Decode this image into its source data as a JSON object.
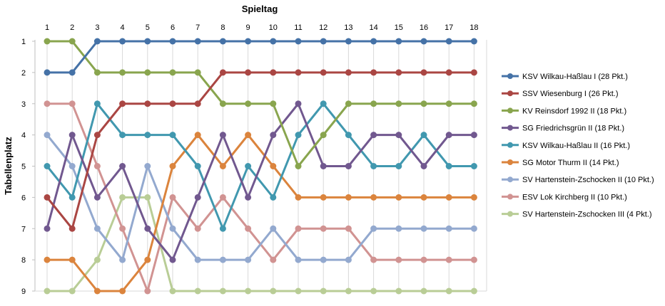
{
  "chart_data": {
    "type": "line",
    "xlabel": "Spieltag",
    "ylabel": "Tabellenplatz",
    "x": [
      1,
      2,
      3,
      4,
      5,
      6,
      7,
      8,
      9,
      10,
      11,
      12,
      13,
      14,
      15,
      16,
      17,
      18
    ],
    "ylim": [
      1,
      9
    ],
    "y_inverted": true,
    "grid": "vertical",
    "legend_position": "right",
    "series": [
      {
        "name": "KSV Wilkau-Haßlau I (28 Pkt.)",
        "color": "#4572A7",
        "values": [
          2,
          2,
          1,
          1,
          1,
          1,
          1,
          1,
          1,
          1,
          1,
          1,
          1,
          1,
          1,
          1,
          1,
          1
        ]
      },
      {
        "name": "SSV Wiesenburg I (26 Pkt.)",
        "color": "#AA4643",
        "values": [
          6,
          7,
          4,
          3,
          3,
          3,
          3,
          2,
          2,
          2,
          2,
          2,
          2,
          2,
          2,
          2,
          2,
          2
        ]
      },
      {
        "name": "KV Reinsdorf 1992 II (18 Pkt.)",
        "color": "#89A54E",
        "values": [
          1,
          1,
          2,
          2,
          2,
          2,
          2,
          3,
          3,
          3,
          5,
          4,
          3,
          3,
          3,
          3,
          3,
          3
        ]
      },
      {
        "name": "SG Friedrichsgrün II (18 Pkt.)",
        "color": "#71588F",
        "values": [
          7,
          4,
          6,
          5,
          7,
          8,
          6,
          4,
          6,
          4,
          3,
          5,
          5,
          4,
          4,
          5,
          4,
          4
        ]
      },
      {
        "name": "KSV Wilkau-Haßlau II (16 Pkt.)",
        "color": "#4198AF",
        "values": [
          5,
          6,
          3,
          4,
          4,
          4,
          5,
          7,
          5,
          6,
          4,
          3,
          4,
          5,
          5,
          4,
          5,
          5
        ]
      },
      {
        "name": "SG Motor Thurm II (14 Pkt.)",
        "color": "#DB843D",
        "values": [
          8,
          8,
          9,
          9,
          8,
          5,
          4,
          5,
          4,
          5,
          6,
          6,
          6,
          6,
          6,
          6,
          6,
          6
        ]
      },
      {
        "name": "SV Hartenstein-Zschocken II (10 Pkt.)",
        "color": "#93A9CF",
        "values": [
          4,
          5,
          7,
          8,
          5,
          7,
          8,
          8,
          8,
          7,
          8,
          8,
          8,
          7,
          7,
          7,
          7,
          7
        ]
      },
      {
        "name": "ESV Lok Kirchberg II (10 Pkt.)",
        "color": "#D19392",
        "values": [
          3,
          3,
          5,
          7,
          9,
          6,
          7,
          6,
          7,
          8,
          7,
          7,
          7,
          8,
          8,
          8,
          8,
          8
        ]
      },
      {
        "name": "SV Hartenstein-Zschocken III (4 Pkt.)",
        "color": "#B9CD96",
        "values": [
          9,
          9,
          8,
          6,
          6,
          9,
          9,
          9,
          9,
          9,
          9,
          9,
          9,
          9,
          9,
          9,
          9,
          9
        ]
      }
    ]
  }
}
